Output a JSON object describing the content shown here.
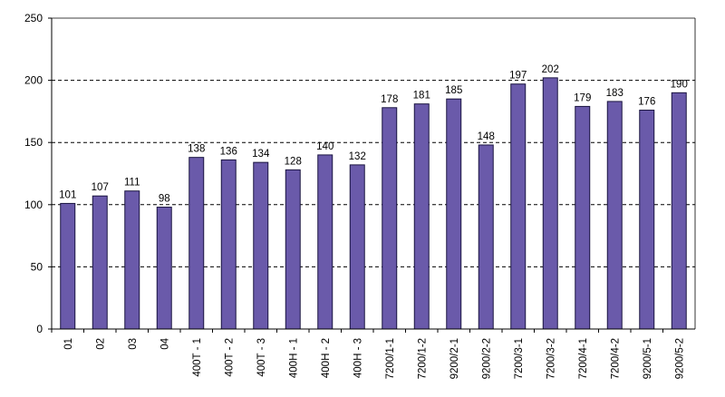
{
  "chart_data": {
    "type": "bar",
    "title": "",
    "xlabel": "",
    "ylabel": "",
    "ylim": [
      0,
      250
    ],
    "yticks": [
      0,
      50,
      100,
      150,
      200,
      250
    ],
    "grid": "horizontal dashed",
    "categories": [
      "01",
      "02",
      "03",
      "04",
      "400T - 1",
      "400T - 2",
      "400T - 3",
      "400H - 1",
      "400H - 2",
      "400H - 3",
      "7200/1-1",
      "7200/1-2",
      "9200/2-1",
      "9200/2-2",
      "7200/3-1",
      "7200/3-2",
      "7200/4-1",
      "7200/4-2",
      "9200/5-1",
      "9200/5-2"
    ],
    "values": [
      101,
      107,
      111,
      98,
      138,
      136,
      134,
      128,
      140,
      132,
      178,
      181,
      185,
      148,
      197,
      202,
      179,
      183,
      176,
      190
    ],
    "data_labels": [
      "101",
      "107",
      "111",
      "98",
      "138",
      "136",
      "134",
      "128",
      "140",
      "132",
      "178",
      "181",
      "185",
      "148",
      "197",
      "202",
      "179",
      "183",
      "176",
      "190"
    ],
    "colors": {
      "bar_fill": "#6a5aaa",
      "bar_stroke": "#1a1440",
      "grid": "#000000"
    }
  }
}
